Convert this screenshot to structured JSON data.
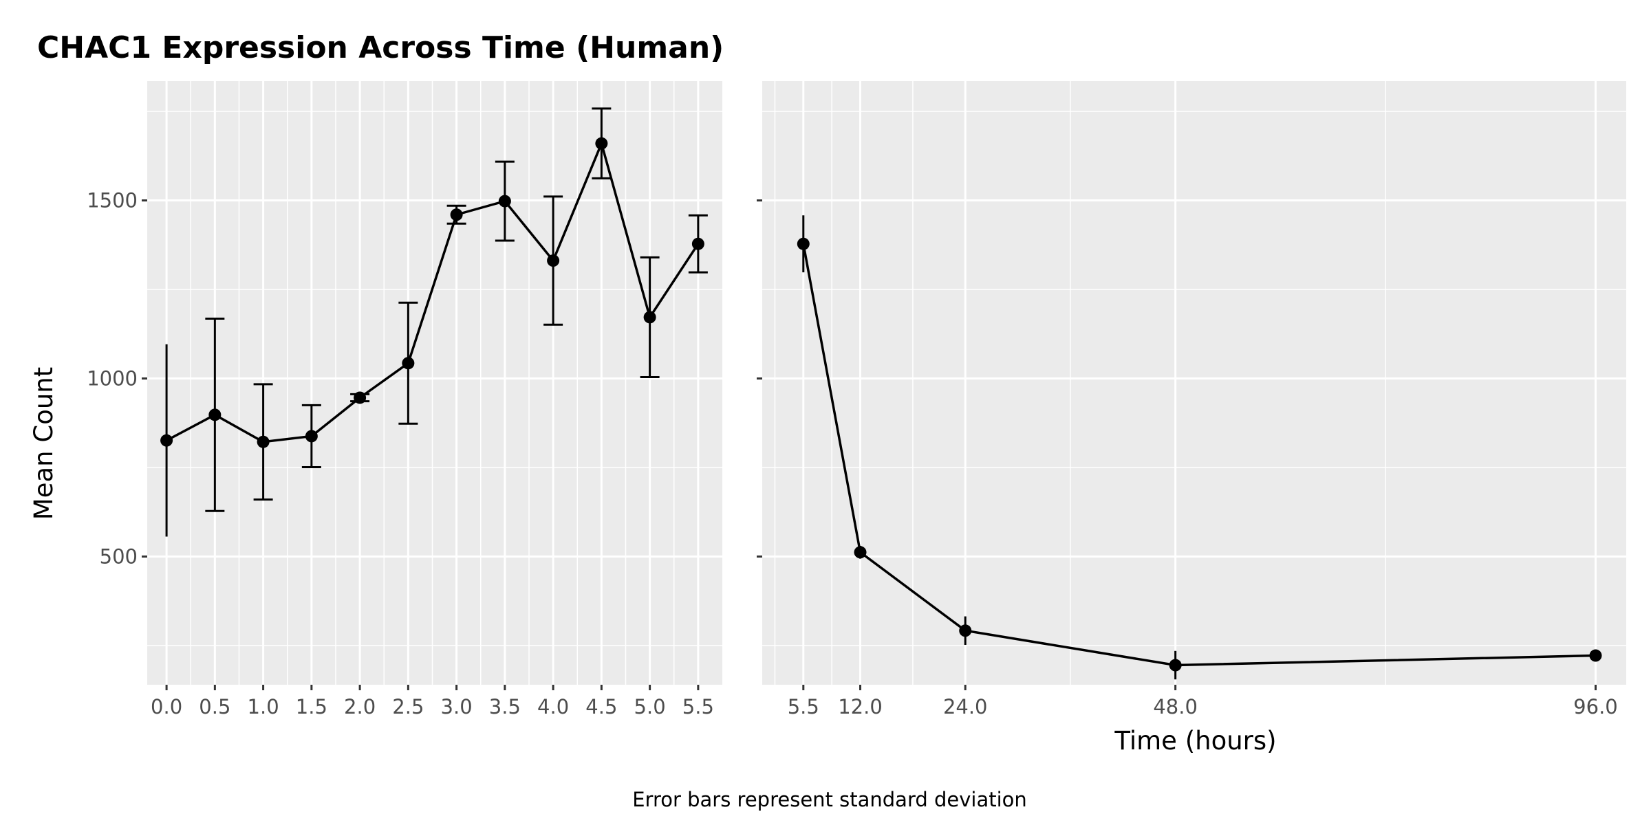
{
  "chart_data": {
    "type": "line",
    "title": "CHAC1 Expression Across Time (Human)",
    "ylabel": "Mean Count",
    "xlabel": "Time (hours)",
    "caption": "Error bars represent standard deviation",
    "ylim": [
      140,
      1835
    ],
    "yticks": [
      500,
      1000,
      1500
    ],
    "grid": true,
    "error_bars": "standard deviation",
    "panels": [
      {
        "name": "early",
        "xlim": [
          -0.2,
          5.75
        ],
        "xticks": [
          "0.0",
          "0.5",
          "1.0",
          "1.5",
          "2.0",
          "2.5",
          "3.0",
          "3.5",
          "4.0",
          "4.5",
          "5.0",
          "5.5"
        ],
        "series": [
          {
            "x": [
              0.0,
              0.5,
              1.0,
              1.5,
              2.0,
              2.5,
              3.0,
              3.5,
              4.0,
              4.5,
              5.0,
              5.5
            ],
            "y": [
              826,
              898,
              822,
              838,
              946,
              1043,
              1460,
              1498,
              1331,
              1660,
              1172,
              1378
            ],
            "sd": [
              270,
              270,
              162,
              87,
              10,
              170,
              25,
              111,
              180,
              98,
              168,
              80
            ]
          }
        ]
      },
      {
        "name": "late",
        "xlim": [
          0.8,
          99.5
        ],
        "xticks": [
          "5.5",
          "12.0",
          "24.0",
          "48.0",
          "96.0"
        ],
        "series": [
          {
            "x": [
              5.5,
              12.0,
              24.0,
              48.0,
              96.0
            ],
            "y": [
              1378,
              512,
              292,
              195,
              222
            ],
            "sd": [
              80,
              18,
              40,
              40,
              8
            ]
          }
        ]
      }
    ]
  }
}
